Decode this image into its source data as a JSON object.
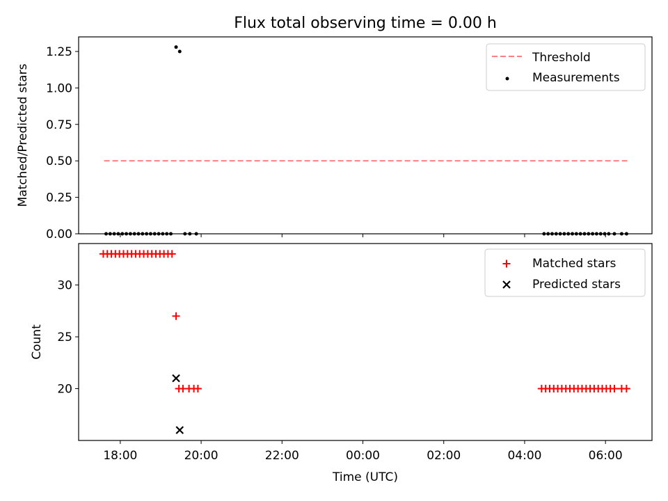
{
  "chart_data": [
    {
      "type": "scatter",
      "title": "Flux total observing time = 0.00 h",
      "xlabel": "",
      "ylabel": "Matched/Predicted stars",
      "ylim": [
        0,
        1.35
      ],
      "yticks": [
        0,
        0.25,
        0.5,
        0.75,
        1.0,
        1.25
      ],
      "ytick_labels": [
        "0.00",
        "0.25",
        "0.50",
        "0.75",
        "1.00",
        "1.25"
      ],
      "legend_position": "top-right",
      "threshold": {
        "name": "Threshold",
        "value": 0.5,
        "x_start": 17.6,
        "x_end": 30.55,
        "color": "#ff7f7f"
      },
      "series": [
        {
          "name": "Measurements",
          "color": "#000000",
          "points": [
            [
              17.65,
              0
            ],
            [
              17.75,
              0
            ],
            [
              17.85,
              0
            ],
            [
              17.95,
              0
            ],
            [
              18.05,
              0
            ],
            [
              18.15,
              0
            ],
            [
              18.25,
              0
            ],
            [
              18.35,
              0
            ],
            [
              18.45,
              0
            ],
            [
              18.55,
              0
            ],
            [
              18.65,
              0
            ],
            [
              18.75,
              0
            ],
            [
              18.85,
              0
            ],
            [
              18.95,
              0
            ],
            [
              19.05,
              0
            ],
            [
              19.15,
              0
            ],
            [
              19.25,
              0
            ],
            [
              19.38,
              1.28
            ],
            [
              19.47,
              1.25
            ],
            [
              19.6,
              0
            ],
            [
              19.72,
              0
            ],
            [
              19.88,
              0
            ],
            [
              28.48,
              0
            ],
            [
              28.58,
              0
            ],
            [
              28.68,
              0
            ],
            [
              28.78,
              0
            ],
            [
              28.88,
              0
            ],
            [
              28.98,
              0
            ],
            [
              29.08,
              0
            ],
            [
              29.18,
              0
            ],
            [
              29.28,
              0
            ],
            [
              29.38,
              0
            ],
            [
              29.48,
              0
            ],
            [
              29.58,
              0
            ],
            [
              29.68,
              0
            ],
            [
              29.78,
              0
            ],
            [
              29.88,
              0
            ],
            [
              29.98,
              0
            ],
            [
              30.08,
              0
            ],
            [
              30.22,
              0
            ],
            [
              30.4,
              0
            ],
            [
              30.52,
              0
            ]
          ]
        }
      ]
    },
    {
      "type": "scatter",
      "title": "",
      "xlabel": "Time (UTC)",
      "ylabel": "Count",
      "xlim": [
        16.97,
        31.15
      ],
      "ylim": [
        15.0,
        34.0
      ],
      "xticks": [
        18,
        20,
        22,
        24,
        26,
        28,
        30
      ],
      "xtick_labels": [
        "18:00",
        "20:00",
        "22:00",
        "00:00",
        "02:00",
        "04:00",
        "06:00"
      ],
      "yticks": [
        20,
        25,
        30
      ],
      "ytick_labels": [
        "20",
        "25",
        "30"
      ],
      "legend_position": "top-right",
      "series": [
        {
          "name": "Matched stars",
          "color": "#ff0000",
          "marker": "plus",
          "points": [
            [
              17.58,
              33
            ],
            [
              17.68,
              33
            ],
            [
              17.78,
              33
            ],
            [
              17.88,
              33
            ],
            [
              17.98,
              33
            ],
            [
              18.08,
              33
            ],
            [
              18.18,
              33
            ],
            [
              18.28,
              33
            ],
            [
              18.38,
              33
            ],
            [
              18.48,
              33
            ],
            [
              18.58,
              33
            ],
            [
              18.68,
              33
            ],
            [
              18.78,
              33
            ],
            [
              18.88,
              33
            ],
            [
              18.98,
              33
            ],
            [
              19.08,
              33
            ],
            [
              19.18,
              33
            ],
            [
              19.28,
              33
            ],
            [
              19.38,
              27
            ],
            [
              19.45,
              20
            ],
            [
              19.55,
              20
            ],
            [
              19.7,
              20
            ],
            [
              19.82,
              20
            ],
            [
              19.92,
              20
            ],
            [
              28.42,
              20
            ],
            [
              28.52,
              20
            ],
            [
              28.62,
              20
            ],
            [
              28.72,
              20
            ],
            [
              28.82,
              20
            ],
            [
              28.92,
              20
            ],
            [
              29.02,
              20
            ],
            [
              29.12,
              20
            ],
            [
              29.22,
              20
            ],
            [
              29.32,
              20
            ],
            [
              29.42,
              20
            ],
            [
              29.52,
              20
            ],
            [
              29.62,
              20
            ],
            [
              29.72,
              20
            ],
            [
              29.82,
              20
            ],
            [
              29.92,
              20
            ],
            [
              30.02,
              20
            ],
            [
              30.12,
              20
            ],
            [
              30.22,
              20
            ],
            [
              30.4,
              20
            ],
            [
              30.52,
              20
            ]
          ]
        },
        {
          "name": "Predicted stars",
          "color": "#000000",
          "marker": "x",
          "points": [
            [
              19.38,
              21
            ],
            [
              19.47,
              16
            ]
          ]
        }
      ]
    }
  ]
}
